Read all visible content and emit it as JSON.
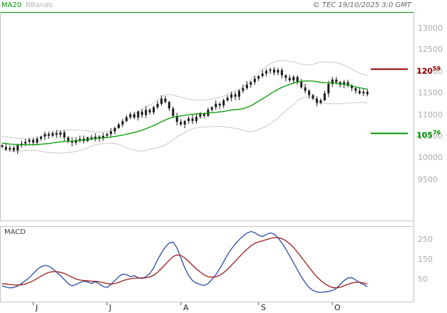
{
  "header": {
    "ma20_label": "MA20",
    "bbands_label": "BBands",
    "copyright": "© TEC 19/10/2025 3:0 GMT"
  },
  "macd_label": "MACD",
  "main_axis": {
    "labels": [
      "13000",
      "12500",
      "12000",
      "11500",
      "11000",
      "10500",
      "10000",
      "9500"
    ],
    "values": [
      13000,
      12500,
      12000,
      11500,
      11000,
      10500,
      10000,
      9500
    ]
  },
  "macd_axis": {
    "labels": [
      "250",
      "150",
      "50"
    ],
    "values": [
      250,
      150,
      50
    ]
  },
  "tags": {
    "resistance": {
      "main": "120",
      "sup": "59",
      "value": 12059,
      "color": "#990000"
    },
    "support": {
      "main": "105",
      "sup": "76",
      "value": 10576,
      "color": "#009a00"
    }
  },
  "months": {
    "labels": [
      "J",
      "J",
      "A",
      "S",
      "O"
    ],
    "indices": [
      8,
      27,
      46,
      66,
      85
    ]
  },
  "chart_data": {
    "type": "candlestick",
    "title": "",
    "indicators": [
      "MA20",
      "BBands",
      "MACD"
    ],
    "x_months": [
      "J",
      "J",
      "A",
      "S",
      "O"
    ],
    "y_axis_ticks": [
      13000,
      12500,
      12000,
      11500,
      11000,
      10500,
      10000,
      9500
    ],
    "y_range": [
      8560,
      13380
    ],
    "macd_axis_ticks": [
      250,
      150,
      50
    ],
    "macd_range": [
      -65,
      320
    ],
    "resistance_level": 12059,
    "support_level": 10576,
    "ma_period": 20,
    "bb_std": 2,
    "first_open": 10300,
    "pre_close": [
      10480,
      10390,
      10520,
      10340,
      10460,
      10280,
      10500,
      10350,
      10430,
      10300,
      10380,
      10320,
      10400,
      10290,
      10350,
      10300,
      10330,
      10270,
      10300,
      10250
    ],
    "close": [
      10260,
      10200,
      10240,
      10180,
      10300,
      10340,
      10380,
      10420,
      10360,
      10450,
      10500,
      10560,
      10520,
      10580,
      10540,
      10600,
      10480,
      10400,
      10360,
      10420,
      10450,
      10400,
      10480,
      10440,
      10500,
      10460,
      10520,
      10560,
      10620,
      10700,
      10780,
      10860,
      10950,
      11020,
      10940,
      11080,
      11000,
      11120,
      11060,
      11180,
      11260,
      11380,
      11300,
      11150,
      10980,
      10840,
      10780,
      10860,
      10920,
      10860,
      10960,
      11020,
      10980,
      11120,
      11180,
      11260,
      11220,
      11340,
      11400,
      11480,
      11420,
      11560,
      11620,
      11700,
      11760,
      11840,
      11900,
      11960,
      12020,
      12050,
      11980,
      12040,
      11920,
      11860,
      11800,
      11880,
      11760,
      11640,
      11560,
      11460,
      11380,
      11280,
      11340,
      11500,
      11720,
      11820,
      11760,
      11700,
      11760,
      11680,
      11620,
      11560,
      11500,
      11540,
      11480
    ],
    "macd": [
      20,
      12,
      8,
      10,
      18,
      30,
      45,
      60,
      80,
      100,
      115,
      122,
      118,
      105,
      88,
      70,
      50,
      30,
      18,
      25,
      35,
      42,
      38,
      30,
      40,
      28,
      15,
      10,
      25,
      45,
      65,
      78,
      75,
      65,
      70,
      60,
      55,
      65,
      80,
      110,
      150,
      185,
      215,
      235,
      240,
      210,
      160,
      110,
      70,
      45,
      32,
      25,
      20,
      30,
      50,
      75,
      105,
      140,
      175,
      205,
      230,
      252,
      270,
      285,
      293,
      288,
      275,
      268,
      278,
      286,
      280,
      262,
      235,
      205,
      170,
      135,
      100,
      65,
      35,
      10,
      -5,
      -12,
      -15,
      -12,
      -10,
      -5,
      5,
      25,
      45,
      58,
      60,
      48,
      35,
      25,
      15
    ],
    "signal": [
      30,
      28,
      25,
      23,
      22,
      24,
      28,
      35,
      44,
      55,
      67,
      78,
      86,
      90,
      90,
      87,
      81,
      72,
      62,
      53,
      48,
      45,
      44,
      42,
      41,
      39,
      35,
      30,
      28,
      30,
      36,
      44,
      50,
      54,
      57,
      58,
      58,
      59,
      63,
      72,
      87,
      106,
      127,
      148,
      166,
      175,
      172,
      160,
      142,
      122,
      104,
      88,
      74,
      65,
      62,
      64,
      72,
      85,
      102,
      122,
      143,
      164,
      184,
      203,
      220,
      233,
      241,
      246,
      252,
      258,
      262,
      262,
      257,
      247,
      232,
      212,
      189,
      164,
      138,
      112,
      87,
      64,
      45,
      30,
      18,
      10,
      8,
      11,
      18,
      26,
      33,
      36,
      36,
      33,
      28
    ],
    "colors": {
      "candle": "#1b1b1b",
      "ma20": "#009a00",
      "bbands": "#c9c9c9",
      "macd": "#2b4ba8",
      "signal": "#9b1c1c",
      "resistance": "#990000",
      "support": "#009a00",
      "border": "#c4c4c4",
      "tick": "#555555"
    }
  }
}
